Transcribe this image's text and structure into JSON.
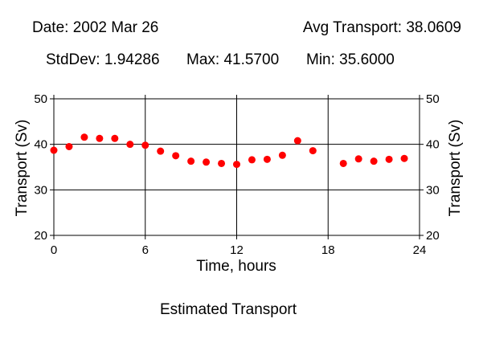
{
  "header": {
    "date": "Date: 2002 Mar 26",
    "avg": "Avg Transport: 38.0609",
    "stddev": "StdDev: 1.94286",
    "max": "Max: 41.5700",
    "min": "Min: 35.6000"
  },
  "caption": "Estimated Transport",
  "colors": {
    "marker": "#ff0000",
    "axis": "#000000",
    "background": "#ffffff"
  },
  "chart_data": {
    "type": "scatter",
    "xlabel": "Time, hours",
    "ylabel": "Transport (Sv)",
    "ylabel_right": "Transport (Sv)",
    "xlim": [
      0,
      24
    ],
    "ylim": [
      20,
      50
    ],
    "xticks": [
      0,
      6,
      12,
      18,
      24
    ],
    "yticks": [
      20,
      30,
      40,
      50
    ],
    "grid": true,
    "series": [
      {
        "x": [
          0,
          1,
          2,
          3,
          4,
          5,
          6,
          7,
          8,
          9,
          10,
          11,
          12,
          13,
          14,
          15,
          16,
          17,
          19,
          20,
          21,
          22,
          23
        ],
        "y": [
          38.7,
          39.5,
          41.57,
          41.3,
          41.3,
          40.0,
          39.8,
          38.5,
          37.5,
          36.3,
          36.1,
          35.8,
          35.6,
          36.6,
          36.7,
          37.6,
          40.8,
          38.6,
          35.8,
          36.8,
          36.3,
          36.7,
          36.9
        ]
      }
    ]
  }
}
